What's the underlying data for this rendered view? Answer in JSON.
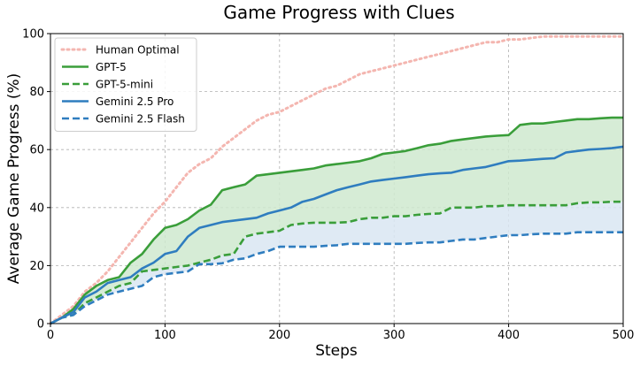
{
  "chart_data": {
    "type": "line",
    "title": "Game Progress with Clues",
    "xlabel": "Steps",
    "ylabel": "Average Game Progress (%)",
    "xlim": [
      0,
      500
    ],
    "ylim": [
      0,
      100
    ],
    "xticks": [
      0,
      100,
      200,
      300,
      400,
      500
    ],
    "yticks": [
      0,
      20,
      40,
      60,
      80,
      100
    ],
    "grid": true,
    "legend_position": "top-left",
    "x": [
      0,
      10,
      20,
      30,
      40,
      50,
      60,
      70,
      80,
      90,
      100,
      110,
      120,
      130,
      140,
      150,
      160,
      170,
      180,
      190,
      200,
      210,
      220,
      230,
      240,
      250,
      260,
      270,
      280,
      290,
      300,
      310,
      320,
      330,
      340,
      350,
      360,
      370,
      380,
      390,
      400,
      410,
      420,
      430,
      440,
      450,
      460,
      470,
      480,
      490,
      500
    ],
    "series": [
      {
        "name": "Human Optimal",
        "color": "#f4b6b0",
        "style": "dotted",
        "values": [
          0,
          3,
          6,
          11,
          14,
          18,
          23,
          28,
          33,
          38,
          42,
          47,
          52,
          55,
          57,
          61,
          64,
          67,
          70,
          72,
          73,
          75,
          77,
          79,
          81,
          82,
          84,
          86,
          87,
          88,
          89,
          90,
          91,
          92,
          93,
          94,
          95,
          96,
          97,
          97,
          98,
          98,
          98.5,
          99,
          99,
          99,
          99,
          99,
          99,
          99,
          99
        ]
      },
      {
        "name": "GPT-5",
        "color": "#3a9e3a",
        "style": "solid",
        "fill_to": "GPT-5-mini",
        "fill_color": "#cfe9cf",
        "values": [
          0,
          2,
          5,
          10,
          13,
          15,
          16,
          21,
          24,
          29,
          33,
          34,
          36,
          39,
          41,
          46,
          47,
          48,
          51,
          51.5,
          52,
          52.5,
          53,
          53.5,
          54.5,
          55,
          55.5,
          56,
          57,
          58.5,
          59,
          59.5,
          60.5,
          61.5,
          62,
          63,
          63.5,
          64,
          64.5,
          64.8,
          65,
          68.5,
          69,
          69,
          69.5,
          70,
          70.5,
          70.5,
          70.8,
          71,
          71
        ]
      },
      {
        "name": "GPT-5-mini",
        "color": "#3a9e3a",
        "style": "dashed",
        "fill_to": "Gemini 2.5 Flash",
        "fill_color": "#d9e6f2",
        "values": [
          0,
          2,
          3,
          7,
          9,
          11,
          13,
          14,
          18,
          18.5,
          19,
          19.5,
          20,
          21,
          22,
          23.5,
          24,
          30,
          31,
          31.5,
          32,
          34,
          34.5,
          34.8,
          34.8,
          34.8,
          35,
          36,
          36.5,
          36.5,
          37,
          37,
          37.5,
          37.8,
          38,
          40,
          40,
          40,
          40.5,
          40.5,
          40.8,
          40.8,
          40.8,
          40.8,
          40.8,
          40.8,
          41.5,
          41.8,
          41.8,
          42,
          42
        ]
      },
      {
        "name": "Gemini 2.5 Pro",
        "color": "#2f7dbf",
        "style": "solid",
        "values": [
          0,
          2,
          4,
          9,
          11,
          14,
          15,
          16,
          19,
          21,
          24,
          25,
          30,
          33,
          34,
          35,
          35.5,
          36,
          36.5,
          38,
          39,
          40,
          42,
          43,
          44.5,
          46,
          47,
          48,
          49,
          49.5,
          50,
          50.5,
          51,
          51.5,
          51.8,
          52,
          53,
          53.5,
          54,
          55,
          56,
          56.2,
          56.5,
          56.8,
          57,
          59,
          59.5,
          60,
          60.2,
          60.5,
          61
        ]
      },
      {
        "name": "Gemini 2.5 Flash",
        "color": "#2f7dbf",
        "style": "dashed",
        "values": [
          0,
          2,
          3,
          6,
          8,
          10,
          11,
          12,
          13,
          16,
          17,
          17.5,
          18,
          20.5,
          20.5,
          20.8,
          22,
          22.5,
          24,
          25,
          26.5,
          26.5,
          26.5,
          26.5,
          26.8,
          27,
          27.5,
          27.5,
          27.5,
          27.5,
          27.5,
          27.5,
          27.8,
          28,
          28,
          28.5,
          29,
          29,
          29.5,
          30,
          30.5,
          30.5,
          30.8,
          31,
          31,
          31,
          31.5,
          31.5,
          31.5,
          31.5,
          31.5
        ]
      }
    ]
  }
}
